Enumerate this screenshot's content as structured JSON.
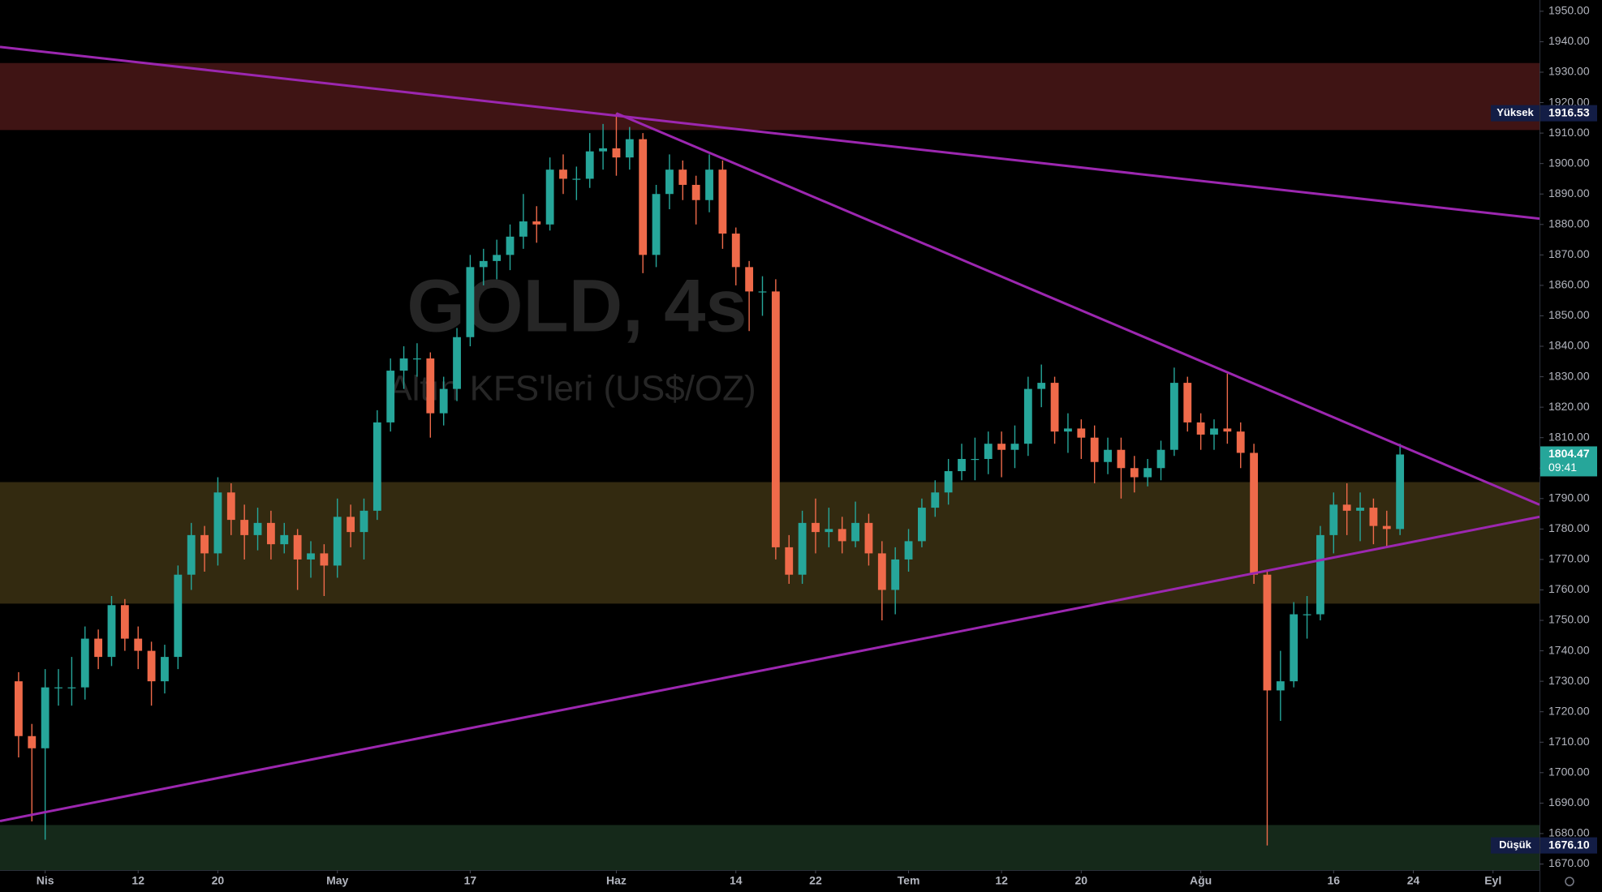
{
  "chart_data": {
    "type": "candlestick",
    "title": "GOLD, 4s",
    "subtitle": "Altın KFS'leri (US$/OZ)",
    "up_color": "#26a69a",
    "down_color": "#ef6a4a",
    "grid": false,
    "xlim": [
      -1.4,
      114.5
    ],
    "ylim": [
      1668,
      1953.7
    ],
    "xticks": [
      {
        "value": 2,
        "label": "Nis"
      },
      {
        "value": 9,
        "label": "12"
      },
      {
        "value": 15,
        "label": "20"
      },
      {
        "value": 24,
        "label": "May"
      },
      {
        "value": 34,
        "label": "17"
      },
      {
        "value": 45,
        "label": "Haz"
      },
      {
        "value": 54,
        "label": "14"
      },
      {
        "value": 60,
        "label": "22"
      },
      {
        "value": 67,
        "label": "Tem"
      },
      {
        "value": 74,
        "label": "12"
      },
      {
        "value": 80,
        "label": "20"
      },
      {
        "value": 89,
        "label": "Ağu"
      },
      {
        "value": 99,
        "label": "16"
      },
      {
        "value": 105,
        "label": "24"
      },
      {
        "value": 111,
        "label": "Eyl"
      }
    ],
    "yticks": [
      {
        "value": 1670,
        "label": "1670.00"
      },
      {
        "value": 1680,
        "label": "1680.00"
      },
      {
        "value": 1690,
        "label": "1690.00"
      },
      {
        "value": 1700,
        "label": "1700.00"
      },
      {
        "value": 1710,
        "label": "1710.00"
      },
      {
        "value": 1720,
        "label": "1720.00"
      },
      {
        "value": 1730,
        "label": "1730.00"
      },
      {
        "value": 1740,
        "label": "1740.00"
      },
      {
        "value": 1750,
        "label": "1750.00"
      },
      {
        "value": 1760,
        "label": "1760.00"
      },
      {
        "value": 1770,
        "label": "1770.00"
      },
      {
        "value": 1780,
        "label": "1780.00"
      },
      {
        "value": 1790,
        "label": "1790.00"
      },
      {
        "value": 1800,
        "label": "1800.00"
      },
      {
        "value": 1810,
        "label": "1810.00"
      },
      {
        "value": 1820,
        "label": "1820.00"
      },
      {
        "value": 1830,
        "label": "1830.00"
      },
      {
        "value": 1840,
        "label": "1840.00"
      },
      {
        "value": 1850,
        "label": "1850.00"
      },
      {
        "value": 1860,
        "label": "1860.00"
      },
      {
        "value": 1870,
        "label": "1870.00"
      },
      {
        "value": 1880,
        "label": "1880.00"
      },
      {
        "value": 1890,
        "label": "1890.00"
      },
      {
        "value": 1900,
        "label": "1900.00"
      },
      {
        "value": 1910,
        "label": "1910.00"
      },
      {
        "value": 1920,
        "label": "1920.00"
      },
      {
        "value": 1930,
        "label": "1930.00"
      },
      {
        "value": 1940,
        "label": "1940.00"
      },
      {
        "value": 1950,
        "label": "1950.00"
      }
    ],
    "candles": {
      "open": [
        1730,
        1712,
        1708,
        1728,
        1728,
        1728,
        1744,
        1738,
        1755,
        1744,
        1740,
        1730,
        1738,
        1765,
        1778,
        1772,
        1792,
        1783,
        1778,
        1782,
        1775,
        1778,
        1770,
        1772,
        1768,
        1784,
        1779,
        1786,
        1815,
        1832,
        1836,
        1836,
        1818,
        1826,
        1843,
        1866,
        1868,
        1870,
        1876,
        1881,
        1880,
        1898,
        1895,
        1895,
        1904,
        1905,
        1902,
        1908,
        1870,
        1890,
        1898,
        1893,
        1888,
        1898,
        1877,
        1866,
        1858,
        1858,
        1774,
        1765,
        1782,
        1779,
        1780,
        1776,
        1782,
        1772,
        1760,
        1770,
        1776,
        1787,
        1792,
        1799,
        1803,
        1803,
        1808,
        1806,
        1808,
        1826,
        1828,
        1812,
        1813,
        1810,
        1802,
        1806,
        1800,
        1797,
        1800,
        1806,
        1828,
        1815,
        1811,
        1813,
        1812,
        1805,
        1765,
        1727,
        1730,
        1752,
        1752,
        1778,
        1788,
        1786,
        1787,
        1781,
        1780
      ],
      "high": [
        1733,
        1716,
        1734,
        1734,
        1738,
        1748,
        1747,
        1758,
        1757,
        1748,
        1743,
        1742,
        1768,
        1782,
        1781,
        1797,
        1795,
        1788,
        1787,
        1786,
        1782,
        1780,
        1776,
        1775,
        1790,
        1788,
        1790,
        1819,
        1836,
        1840,
        1841,
        1838,
        1830,
        1846,
        1870,
        1872,
        1875,
        1880,
        1890,
        1886,
        1902,
        1903,
        1899,
        1910,
        1913,
        1916.53,
        1912,
        1910,
        1893,
        1903,
        1901,
        1896,
        1903,
        1901,
        1879,
        1868,
        1863,
        1862,
        1778,
        1786,
        1790,
        1787,
        1784,
        1789,
        1785,
        1776,
        1774,
        1780,
        1790,
        1796,
        1803,
        1808,
        1810,
        1812,
        1812,
        1814,
        1830,
        1834,
        1830,
        1818,
        1816,
        1814,
        1810,
        1810,
        1804,
        1803,
        1809,
        1833,
        1830,
        1818,
        1816,
        1831,
        1815,
        1808,
        1766,
        1740,
        1756,
        1758,
        1781,
        1792,
        1795,
        1792,
        1790,
        1786,
        1808
      ],
      "low": [
        1705,
        1684,
        1678,
        1722,
        1722,
        1724,
        1734,
        1735,
        1740,
        1734,
        1722,
        1726,
        1734,
        1760,
        1766,
        1768,
        1778,
        1770,
        1773,
        1770,
        1772,
        1760,
        1764,
        1758,
        1764,
        1774,
        1770,
        1783,
        1812,
        1826,
        1830,
        1810,
        1814,
        1822,
        1840,
        1860,
        1862,
        1865,
        1872,
        1874,
        1878,
        1890,
        1888,
        1892,
        1898,
        1896,
        1898,
        1864,
        1866,
        1885,
        1888,
        1880,
        1884,
        1872,
        1860,
        1845,
        1850,
        1770,
        1762,
        1762,
        1772,
        1774,
        1772,
        1774,
        1768,
        1750,
        1752,
        1766,
        1774,
        1784,
        1788,
        1796,
        1796,
        1798,
        1797,
        1800,
        1804,
        1820,
        1808,
        1805,
        1803,
        1795,
        1798,
        1790,
        1792,
        1794,
        1796,
        1804,
        1812,
        1806,
        1806,
        1808,
        1800,
        1762,
        1676.1,
        1717,
        1728,
        1744,
        1750,
        1772,
        1778,
        1776,
        1775,
        1774,
        1778
      ],
      "close": [
        1712,
        1708,
        1728,
        1728,
        1728,
        1744,
        1738,
        1755,
        1744,
        1740,
        1730,
        1738,
        1765,
        1778,
        1772,
        1792,
        1783,
        1778,
        1782,
        1775,
        1778,
        1770,
        1772,
        1768,
        1784,
        1779,
        1786,
        1815,
        1832,
        1836,
        1836,
        1818,
        1826,
        1843,
        1866,
        1868,
        1870,
        1876,
        1881,
        1880,
        1898,
        1895,
        1895,
        1904,
        1905,
        1902,
        1908,
        1870,
        1890,
        1898,
        1893,
        1888,
        1898,
        1877,
        1866,
        1858,
        1858,
        1774,
        1765,
        1782,
        1779,
        1780,
        1776,
        1782,
        1772,
        1760,
        1770,
        1776,
        1787,
        1792,
        1799,
        1803,
        1803,
        1808,
        1806,
        1808,
        1826,
        1828,
        1812,
        1813,
        1810,
        1802,
        1806,
        1800,
        1797,
        1800,
        1806,
        1828,
        1815,
        1811,
        1813,
        1812,
        1805,
        1765,
        1727,
        1730,
        1752,
        1752,
        1778,
        1788,
        1786,
        1787,
        1781,
        1780,
        1804.47
      ]
    },
    "countdown": "09:41",
    "zones": [
      {
        "from": 1911,
        "to": 1933,
        "color": "#3f1414"
      },
      {
        "from": 1755.5,
        "to": 1795.4,
        "color": "#332a10"
      },
      {
        "from": 1660,
        "to": 1682.8,
        "color": "#15291a"
      }
    ],
    "line_color": "#9c27b0",
    "lines": [
      {
        "x": [
          -1.4,
          114.5
        ],
        "y": [
          1938.3,
          1881.9
        ]
      },
      {
        "x": [
          45,
          114.5
        ],
        "y": [
          1916.5,
          1788
        ]
      },
      {
        "x": [
          -1.4,
          114.5
        ],
        "y": [
          1684.1,
          1784
        ]
      }
    ],
    "markers": [
      {
        "name": "Yüksek",
        "value": 1916.53
      },
      {
        "name": "Düşük",
        "value": 1676.1,
        "label": "1676.10"
      }
    ]
  }
}
